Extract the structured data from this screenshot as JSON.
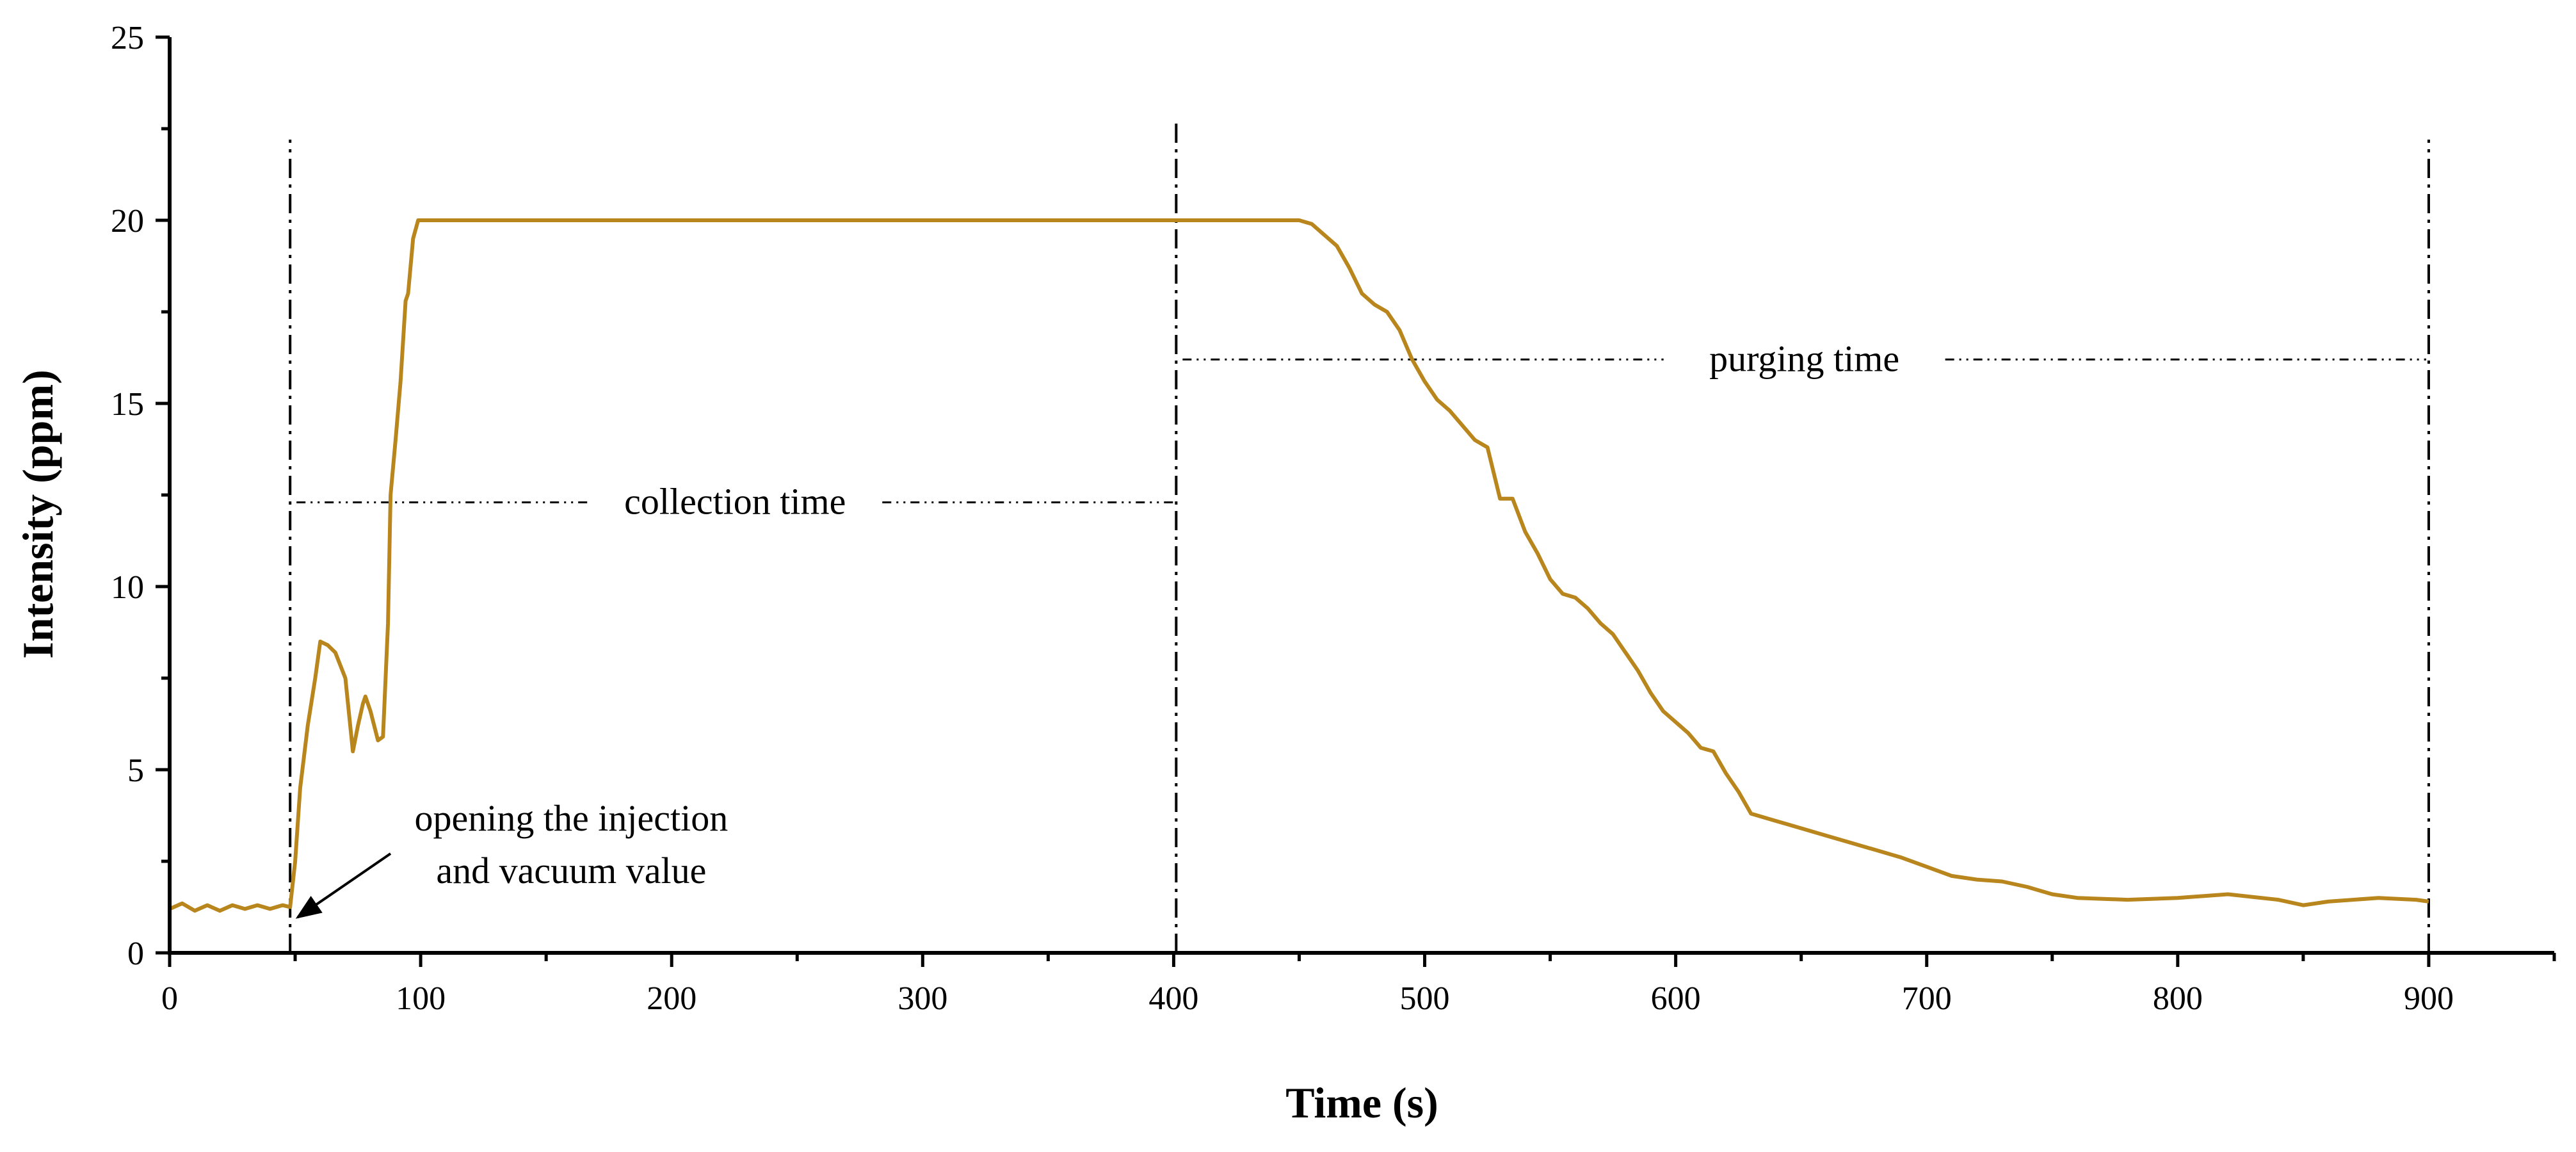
{
  "chart_data": {
    "type": "line",
    "title": "",
    "xlabel": "Time (s)",
    "ylabel": "Intensity (ppm)",
    "xlim": [
      0,
      950
    ],
    "ylim": [
      0,
      25
    ],
    "x_ticks": [
      0,
      100,
      200,
      300,
      400,
      500,
      600,
      700,
      800,
      900
    ],
    "y_ticks": [
      0,
      5,
      10,
      15,
      20,
      25
    ],
    "line_color": "#b8861c",
    "grid": false,
    "legend": "none",
    "series": [
      {
        "name": "Intensity",
        "x": [
          0,
          5,
          10,
          15,
          20,
          25,
          30,
          35,
          40,
          45,
          48,
          50,
          52,
          55,
          58,
          60,
          63,
          66,
          70,
          73,
          75,
          77,
          78,
          80,
          83,
          85,
          87,
          88,
          90,
          92,
          94,
          95,
          97,
          99,
          100,
          150,
          200,
          250,
          300,
          350,
          400,
          420,
          440,
          450,
          455,
          460,
          465,
          470,
          475,
          480,
          485,
          490,
          495,
          500,
          505,
          510,
          515,
          520,
          525,
          530,
          535,
          540,
          545,
          550,
          555,
          560,
          565,
          570,
          575,
          580,
          585,
          590,
          595,
          600,
          605,
          610,
          615,
          620,
          625,
          630,
          640,
          650,
          660,
          670,
          680,
          690,
          700,
          710,
          720,
          730,
          740,
          750,
          760,
          780,
          800,
          820,
          840,
          850,
          860,
          880,
          895,
          900
        ],
        "values": [
          1.2,
          1.35,
          1.15,
          1.3,
          1.15,
          1.3,
          1.2,
          1.3,
          1.2,
          1.3,
          1.25,
          2.5,
          4.5,
          6.2,
          7.5,
          8.5,
          8.4,
          8.2,
          7.5,
          5.5,
          6.2,
          6.8,
          7.0,
          6.6,
          5.8,
          5.9,
          9.0,
          12.5,
          14.0,
          15.6,
          17.8,
          18.0,
          19.5,
          20.0,
          20.0,
          20.0,
          20.0,
          20.0,
          20.0,
          20.0,
          20.0,
          20.0,
          20.0,
          20.0,
          19.9,
          19.6,
          19.3,
          18.7,
          18.0,
          17.7,
          17.5,
          17.0,
          16.2,
          15.6,
          15.1,
          14.8,
          14.4,
          14.0,
          13.8,
          12.4,
          12.4,
          11.5,
          10.9,
          10.2,
          9.8,
          9.7,
          9.4,
          9.0,
          8.7,
          8.2,
          7.7,
          7.1,
          6.6,
          6.3,
          6.0,
          5.6,
          5.5,
          4.9,
          4.4,
          3.8,
          3.6,
          3.4,
          3.2,
          3.0,
          2.8,
          2.6,
          2.35,
          2.1,
          2.0,
          1.95,
          1.8,
          1.6,
          1.5,
          1.45,
          1.5,
          1.6,
          1.45,
          1.3,
          1.4,
          1.5,
          1.45,
          1.4
        ]
      }
    ],
    "vertical_lines": [
      48,
      401,
      900
    ],
    "annotations": {
      "injection_line1": "opening the injection",
      "injection_line2": "and vacuum value",
      "collection": "collection time",
      "purging": "purging time"
    },
    "collection_span": {
      "from": 48,
      "to": 401,
      "y": 12.3
    },
    "purging_span": {
      "from": 401,
      "to": 900,
      "y": 16.2
    },
    "injection_arrow": {
      "x": 50,
      "y": 0.9
    }
  }
}
